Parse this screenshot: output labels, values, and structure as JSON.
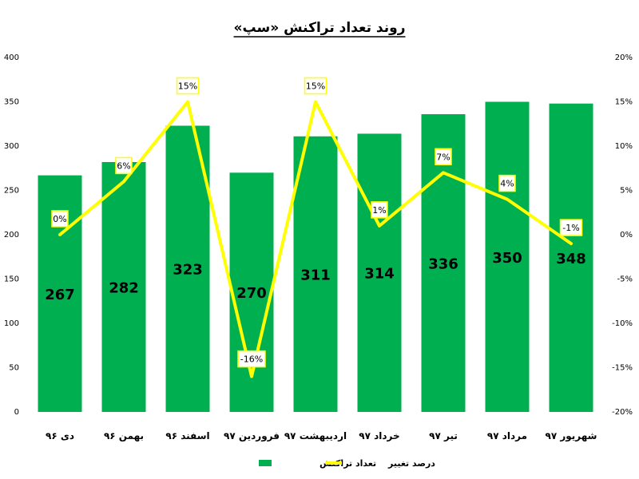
{
  "chart_data": {
    "type": "bar",
    "title": "روند تعداد تراکنش «سپ»",
    "categories": [
      "دی ۹۶",
      "بهمن ۹۶",
      "اسفند ۹۶",
      "فروردین ۹۷",
      "اردیبهشت ۹۷",
      "خرداد ۹۷",
      "تیر ۹۷",
      "مرداد ۹۷",
      "شهریور ۹۷"
    ],
    "series": [
      {
        "name": "تعداد تراکنش",
        "type": "bar",
        "axis": "left",
        "color": "#00b050",
        "values": [
          267,
          282,
          323,
          270,
          311,
          314,
          336,
          350,
          348
        ],
        "labels": [
          "267",
          "282",
          "323",
          "270",
          "311",
          "314",
          "336",
          "350",
          "348"
        ]
      },
      {
        "name": "درصد تغییر",
        "type": "line",
        "axis": "right",
        "color": "#ffff00",
        "values": [
          0,
          6,
          15,
          -16,
          15,
          1,
          7,
          4,
          -1
        ],
        "labels": [
          "0%",
          "6%",
          "15%",
          "-16%",
          "15%",
          "1%",
          "7%",
          "4%",
          "-1%"
        ]
      }
    ],
    "y_left": {
      "ylim": [
        0,
        400
      ],
      "ticks": [
        "0",
        "50",
        "100",
        "150",
        "200",
        "250",
        "300",
        "350",
        "400"
      ]
    },
    "y_right": {
      "ylim": [
        -20,
        20
      ],
      "ticks": [
        "-20%",
        "-15%",
        "-10%",
        "-5%",
        "0%",
        "5%",
        "10%",
        "15%",
        "20%"
      ]
    },
    "grid": false,
    "legend_position": "bottom"
  }
}
